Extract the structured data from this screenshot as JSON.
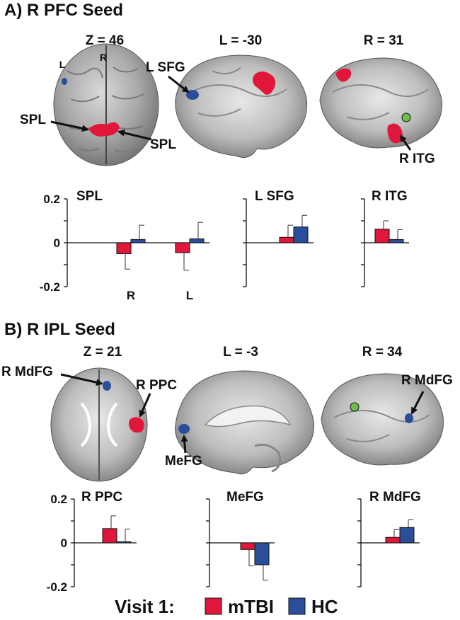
{
  "panel_a": {
    "title": "A) R PFC Seed",
    "views": [
      "Z = 46",
      "L = -30",
      "R = 31"
    ],
    "annotations": {
      "l": "L",
      "r": "R",
      "spl_left": "SPL",
      "spl_right": "SPL",
      "lsfg": "L SFG",
      "ritg": "R ITG"
    }
  },
  "panel_b": {
    "title": "B) R IPL Seed",
    "views": [
      "Z = 21",
      "L = -3",
      "R = 34"
    ],
    "annotations": {
      "rmdfg_left": "R MdFG",
      "rppc": "R PPC",
      "mefg": "MeFG",
      "rmdfg_right": "R MdFG"
    }
  },
  "legend": {
    "prefix": "Visit 1:",
    "items": [
      {
        "label": "mTBI",
        "color": "#e0173b"
      },
      {
        "label": "HC",
        "color": "#2a4e9a"
      }
    ]
  },
  "chart_data": [
    {
      "type": "bar",
      "panel": "A",
      "title": "SPL",
      "categories": [
        "R",
        "L"
      ],
      "series": [
        {
          "name": "mTBI",
          "values": [
            -0.05,
            -0.045
          ],
          "errors": [
            0.07,
            0.08
          ]
        },
        {
          "name": "HC",
          "values": [
            0.015,
            0.018
          ],
          "errors": [
            0.065,
            0.075
          ]
        }
      ],
      "ylim": [
        -0.2,
        0.2
      ],
      "yticks": [
        "0.2",
        "0",
        "-0.2"
      ]
    },
    {
      "type": "bar",
      "panel": "A",
      "title": "L SFG",
      "categories": [
        ""
      ],
      "series": [
        {
          "name": "mTBI",
          "values": [
            0.025
          ],
          "errors": [
            0.055
          ]
        },
        {
          "name": "HC",
          "values": [
            0.072
          ],
          "errors": [
            0.053
          ]
        }
      ],
      "ylim": [
        -0.2,
        0.2
      ]
    },
    {
      "type": "bar",
      "panel": "A",
      "title": "R ITG",
      "categories": [
        ""
      ],
      "series": [
        {
          "name": "mTBI",
          "values": [
            0.062
          ],
          "errors": [
            0.038
          ]
        },
        {
          "name": "HC",
          "values": [
            0.015
          ],
          "errors": [
            0.045
          ]
        }
      ],
      "ylim": [
        -0.2,
        0.2
      ]
    },
    {
      "type": "bar",
      "panel": "B",
      "title": "R PPC",
      "categories": [
        ""
      ],
      "series": [
        {
          "name": "mTBI",
          "values": [
            0.065
          ],
          "errors": [
            0.058
          ]
        },
        {
          "name": "HC",
          "values": [
            0.005
          ],
          "errors": [
            0.058
          ]
        }
      ],
      "ylim": [
        -0.2,
        0.2
      ],
      "yticks": [
        "0.2",
        "0",
        "-0.2"
      ]
    },
    {
      "type": "bar",
      "panel": "B",
      "title": "MeFG",
      "categories": [
        ""
      ],
      "series": [
        {
          "name": "mTBI",
          "values": [
            -0.03
          ],
          "errors": [
            0.075
          ]
        },
        {
          "name": "HC",
          "values": [
            -0.1
          ],
          "errors": [
            0.07
          ]
        }
      ],
      "ylim": [
        -0.2,
        0.2
      ]
    },
    {
      "type": "bar",
      "panel": "B",
      "title": "R MdFG",
      "categories": [
        ""
      ],
      "series": [
        {
          "name": "mTBI",
          "values": [
            0.025
          ],
          "errors": [
            0.035
          ]
        },
        {
          "name": "HC",
          "values": [
            0.07
          ],
          "errors": [
            0.035
          ]
        }
      ],
      "ylim": [
        -0.2,
        0.2
      ]
    }
  ]
}
